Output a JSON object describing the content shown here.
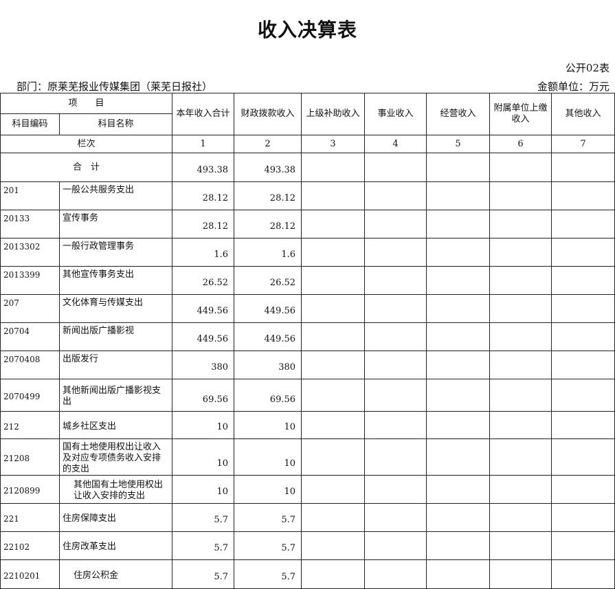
{
  "title": "收入决算表",
  "table_no": "公开02表",
  "department": "部门：原莱芜报业传媒集团（莱芜日报社）",
  "unit": "金额单位：万元",
  "headers": {
    "item": "项　　目",
    "code": "科目编码",
    "name": "科目名称",
    "cols": [
      "本年收入合计",
      "财政拨款收入",
      "上级补助收入",
      "事业收入",
      "经营收入",
      "附属单位上缴收入",
      "其他收入"
    ],
    "column_index_label": "栏次",
    "column_numbers": [
      "1",
      "2",
      "3",
      "4",
      "5",
      "6",
      "7"
    ]
  },
  "total": {
    "label": "合　计",
    "c1": "493.38",
    "c2": "493.38"
  },
  "rows": [
    {
      "code": "201",
      "name": "一般公共服务支出",
      "c1": "28.12",
      "c2": "28.12"
    },
    {
      "code": "20133",
      "name": "宣传事务",
      "c1": "28.12",
      "c2": "28.12"
    },
    {
      "code": "2013302",
      "name": "一般行政管理事务",
      "c1": "1.6",
      "c2": "1.6"
    },
    {
      "code": "2013399",
      "name": "其他宣传事务支出",
      "c1": "26.52",
      "c2": "26.52"
    },
    {
      "code": "207",
      "name": "文化体育与传媒支出",
      "c1": "449.56",
      "c2": "449.56"
    },
    {
      "code": "20704",
      "name": "新闻出版广播影视",
      "c1": "449.56",
      "c2": "449.56"
    },
    {
      "code": "2070408",
      "name": "出版发行",
      "c1": "380",
      "c2": "380"
    },
    {
      "code": "2070499",
      "name": "其他新闻出版广播影视支出",
      "c1": "69.56",
      "c2": "69.56"
    },
    {
      "code": "212",
      "name": "城乡社区支出",
      "c1": "10",
      "c2": "10"
    },
    {
      "code": "21208",
      "name": "国有土地使用权出让收入及对应专项债务收入安排的支出",
      "c1": "10",
      "c2": "10"
    },
    {
      "code": "2120899",
      "name": "其他国有土地使用权出让收入安排的支出",
      "c1": "10",
      "c2": "10"
    },
    {
      "code": "221",
      "name": "住房保障支出",
      "c1": "5.7",
      "c2": "5.7"
    },
    {
      "code": "22102",
      "name": "住房改革支出",
      "c1": "5.7",
      "c2": "5.7"
    },
    {
      "code": "2210201",
      "name": "住房公积金",
      "c1": "5.7",
      "c2": "5.7"
    }
  ]
}
